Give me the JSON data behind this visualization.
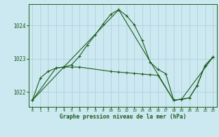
{
  "title": "Graphe pression niveau de la mer (hPa)",
  "background_color": "#cce8f0",
  "grid_color": "#aaccd8",
  "line_color": "#1a5c1a",
  "xlim": [
    -0.5,
    23.5
  ],
  "ylim": [
    1021.55,
    1024.65
  ],
  "yticks": [
    1022,
    1023,
    1024
  ],
  "xticks": [
    0,
    1,
    2,
    3,
    4,
    5,
    6,
    7,
    8,
    9,
    10,
    11,
    12,
    13,
    14,
    15,
    16,
    17,
    18,
    19,
    20,
    21,
    22,
    23
  ],
  "series": [
    {
      "x": [
        0,
        1,
        2,
        3,
        4,
        5,
        6,
        7,
        8,
        9,
        10,
        11,
        12,
        13,
        14,
        15,
        16,
        17,
        18,
        19,
        20,
        21,
        22,
        23
      ],
      "y": [
        1021.75,
        1022.42,
        1022.62,
        1022.72,
        1022.75,
        1022.82,
        1023.08,
        1023.42,
        1023.72,
        1024.05,
        1024.35,
        1024.48,
        1024.3,
        1024.02,
        1023.55,
        1022.9,
        1022.68,
        1022.55,
        1021.75,
        1021.78,
        1021.82,
        1022.2,
        1022.8,
        1023.05
      ]
    },
    {
      "x": [
        0,
        3,
        4,
        5,
        6,
        10,
        11,
        12,
        13,
        14,
        15,
        16,
        18,
        19,
        20,
        21,
        22,
        23
      ],
      "y": [
        1021.75,
        1022.72,
        1022.75,
        1022.75,
        1022.75,
        1022.62,
        1022.6,
        1022.58,
        1022.56,
        1022.54,
        1022.52,
        1022.5,
        1021.75,
        1021.78,
        1021.82,
        1022.2,
        1022.8,
        1023.05
      ]
    },
    {
      "x": [
        0,
        4,
        11,
        18,
        19,
        23
      ],
      "y": [
        1021.75,
        1022.75,
        1024.48,
        1021.75,
        1021.78,
        1023.05
      ]
    }
  ]
}
